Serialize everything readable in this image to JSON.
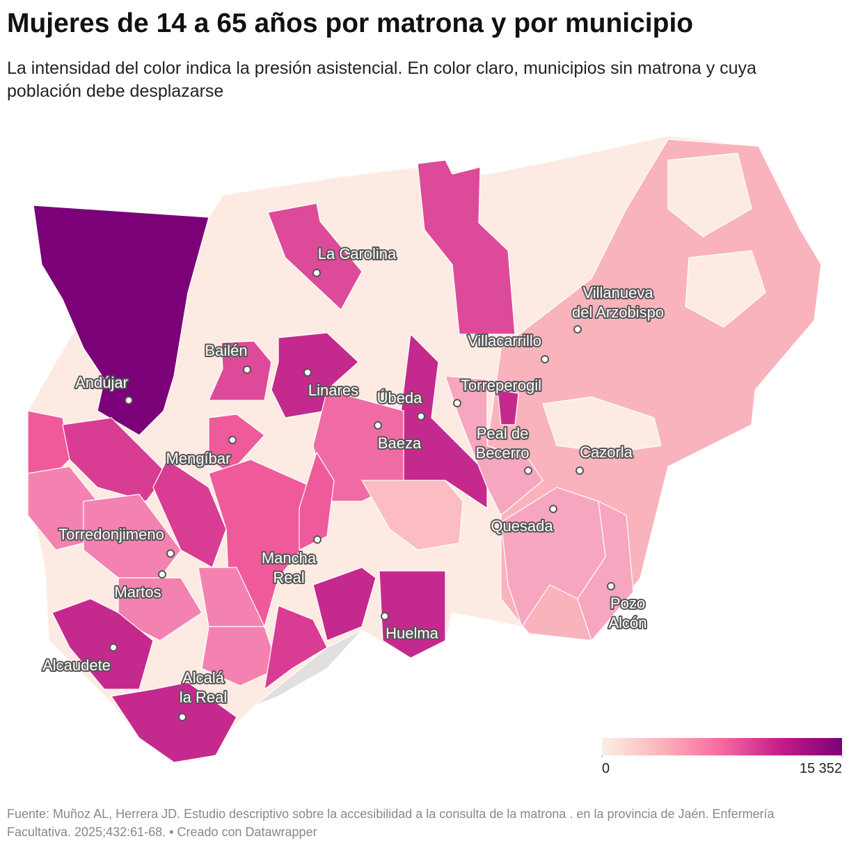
{
  "header": {
    "title": "Mujeres de 14 a 65 años por matrona y por municipio",
    "subtitle": "La intensidad del color indica la presión asistencial. En color claro, municipios sin matrona y cuya población debe desplazarse"
  },
  "map": {
    "cities": [
      [
        "La Carolina"
      ],
      [
        "Villanueva",
        "del Arzobispo"
      ],
      [
        "Villacarrillo"
      ],
      [
        "Bailén"
      ],
      [
        "Andújar"
      ],
      [
        "Linares"
      ],
      [
        "Úbeda"
      ],
      [
        "Torreperogil"
      ],
      [
        "Baeza"
      ],
      [
        "Mengíbar"
      ],
      [
        "Peal de",
        "Becerro"
      ],
      [
        "Cazorla"
      ],
      [
        "Quesada"
      ],
      [
        "Torredonjimeno"
      ],
      [
        "Mancha",
        "Real"
      ],
      [
        "Martos"
      ],
      [
        "Pozo",
        "Alcón"
      ],
      [
        "Huelma"
      ],
      [
        "Alcaudete"
      ],
      [
        "Alcalá",
        "la Real"
      ]
    ]
  },
  "legend": {
    "ticks": [
      0,
      {
        "value": 15352,
        "label": "15 352"
      }
    ],
    "colors": [
      "#fdeee6",
      "#fbb4b9",
      "#f768a1",
      "#c51b8a",
      "#7a0177"
    ]
  },
  "footer": {
    "source": "Fuente: Muñoz AL, Herrera JD. Estudio descriptivo sobre la accesibilidad a la consulta de la matrona . en la provincia de Jaén. Enfermería Facultativa. 2025;432:61-68. • Creado con Datawrapper"
  }
}
